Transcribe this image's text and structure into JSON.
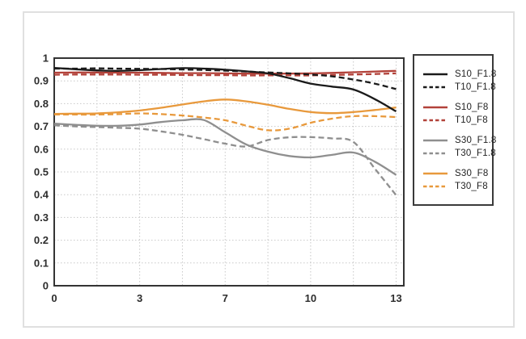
{
  "chart_data": {
    "type": "line",
    "title": "",
    "xlabel": "",
    "ylabel": "",
    "ylim": [
      0,
      1
    ],
    "y_tick_labels": [
      "1",
      "0.9",
      "0.8",
      "0.7",
      "0.6",
      "0.5",
      "0.4",
      "0.3",
      "0.2",
      "0.1",
      "0"
    ],
    "x_tick_labels": [
      "0",
      "3",
      "7",
      "10",
      "13"
    ],
    "grid": "dotted light-gray; horizontal every 0.1; vertical at each labeled tick and midway between ticks",
    "legend_position": "right",
    "values_note": "each series sampled at 17 evenly spaced positions spanning the full x-axis (0 to 13)",
    "series": [
      {
        "name": "S10_F1.8",
        "color": "#1a1a1a",
        "style": "solid",
        "values": [
          0.957,
          0.951,
          0.946,
          0.944,
          0.947,
          0.952,
          0.956,
          0.954,
          0.949,
          0.942,
          0.933,
          0.912,
          0.888,
          0.875,
          0.862,
          0.82,
          0.766
        ]
      },
      {
        "name": "T10_F1.8",
        "color": "#1a1a1a",
        "style": "dashed",
        "values": [
          0.954,
          0.954,
          0.955,
          0.954,
          0.953,
          0.952,
          0.95,
          0.948,
          0.945,
          0.941,
          0.937,
          0.933,
          0.928,
          0.92,
          0.906,
          0.888,
          0.864
        ]
      },
      {
        "name": "S10_F8",
        "color": "#b2423a",
        "style": "solid",
        "values": [
          0.936,
          0.937,
          0.937,
          0.936,
          0.936,
          0.935,
          0.934,
          0.934,
          0.933,
          0.932,
          0.932,
          0.932,
          0.933,
          0.935,
          0.938,
          0.941,
          0.944
        ]
      },
      {
        "name": "T10_F8",
        "color": "#b2423a",
        "style": "dashed",
        "values": [
          0.927,
          0.928,
          0.928,
          0.928,
          0.927,
          0.927,
          0.926,
          0.925,
          0.925,
          0.924,
          0.924,
          0.924,
          0.924,
          0.926,
          0.928,
          0.93,
          0.933
        ]
      },
      {
        "name": "S30_F1.8",
        "color": "#8f8f8f",
        "style": "solid",
        "values": [
          0.712,
          0.707,
          0.703,
          0.703,
          0.708,
          0.719,
          0.727,
          0.728,
          0.674,
          0.62,
          0.589,
          0.57,
          0.564,
          0.575,
          0.585,
          0.545,
          0.487
        ]
      },
      {
        "name": "T30_F1.8",
        "color": "#8f8f8f",
        "style": "dashed",
        "values": [
          0.705,
          0.7,
          0.697,
          0.694,
          0.69,
          0.678,
          0.663,
          0.644,
          0.624,
          0.612,
          0.64,
          0.652,
          0.653,
          0.647,
          0.632,
          0.515,
          0.398
        ]
      },
      {
        "name": "S30_F8",
        "color": "#e8993c",
        "style": "solid",
        "values": [
          0.755,
          0.756,
          0.757,
          0.762,
          0.77,
          0.782,
          0.796,
          0.81,
          0.818,
          0.81,
          0.795,
          0.777,
          0.763,
          0.758,
          0.763,
          0.772,
          0.783
        ]
      },
      {
        "name": "T30_F8",
        "color": "#e8993c",
        "style": "dashed",
        "values": [
          0.752,
          0.752,
          0.752,
          0.754,
          0.757,
          0.754,
          0.748,
          0.739,
          0.727,
          0.703,
          0.683,
          0.69,
          0.716,
          0.734,
          0.745,
          0.745,
          0.741
        ]
      }
    ]
  },
  "legend": {
    "entries": [
      "S10_F1.8",
      "T10_F1.8",
      "S10_F8",
      "T10_F8",
      "S30_F1.8",
      "T30_F1.8",
      "S30_F8",
      "T30_F8"
    ]
  },
  "colors": {
    "frame_border": "#e0e0e0",
    "axis": "#343434",
    "grid": "#c8c8c8",
    "tick_text": "#2d2d2d",
    "black_series": "#1a1a1a",
    "red_series": "#b2423a",
    "gray_series": "#8f8f8f",
    "orange_series": "#e8993c"
  }
}
